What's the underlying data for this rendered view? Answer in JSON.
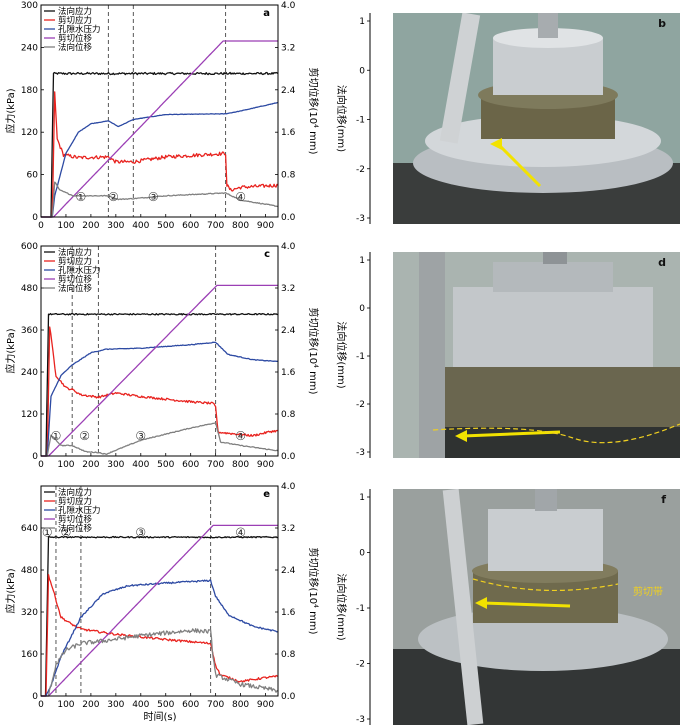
{
  "figure": {
    "x_label": "时间(s)",
    "y_label_left": "应力(kPa)",
    "y_label_right_top": "剪切位移(10",
    "y_label_right_sup": "4",
    "y_label_right_bottom": " mm)",
    "photo_axis_label": "法向位移(mm)"
  },
  "colors": {
    "normal_stress": "#111111",
    "shear_stress": "#e8231f",
    "pore_pressure": "#2d4aa3",
    "shear_displacement": "#9b3fb5",
    "normal_displacement": "#808080",
    "arrow": "#f2e200",
    "shear_band": "#f0d020"
  },
  "photos": [
    {
      "label": "b",
      "caption": ""
    },
    {
      "label": "d",
      "caption": ""
    },
    {
      "label": "f",
      "caption": "剪切带"
    }
  ],
  "photo_axis_ticks": [
    "1",
    "0",
    "-1",
    "-2",
    "-3"
  ],
  "chart_data": [
    {
      "type": "line",
      "label": "a",
      "xlim": [
        0,
        950
      ],
      "x_ticks": [
        0,
        100,
        200,
        300,
        400,
        500,
        600,
        700,
        800,
        900
      ],
      "ylim_left": [
        0,
        300
      ],
      "y_ticks_left": [
        0,
        60,
        120,
        180,
        240,
        300
      ],
      "ylim_right": [
        0,
        4.0
      ],
      "y_ticks_right": [
        "0.0",
        "0.8",
        "1.6",
        "2.4",
        "3.2",
        "4.0"
      ],
      "stage_lines_x": [
        270,
        370,
        740
      ],
      "stage_labels": [
        {
          "text": "①",
          "x": 160,
          "y": 20
        },
        {
          "text": "②",
          "x": 290,
          "y": 20
        },
        {
          "text": "③",
          "x": 450,
          "y": 20
        },
        {
          "text": "④",
          "x": 800,
          "y": 20
        }
      ],
      "legend": [
        "法向应力",
        "剪切应力",
        "孔隙水压力",
        "剪切位移",
        "法向位移"
      ],
      "series": [
        {
          "name": "法向应力",
          "axis": "left",
          "color": "#111111",
          "noise": 1.5,
          "points": [
            [
              0,
              0
            ],
            [
              40,
              0
            ],
            [
              50,
              203
            ],
            [
              950,
              203
            ]
          ]
        },
        {
          "name": "剪切应力",
          "axis": "left",
          "color": "#e8231f",
          "noise": 2.5,
          "points": [
            [
              0,
              0
            ],
            [
              45,
              0
            ],
            [
              55,
              175
            ],
            [
              65,
              110
            ],
            [
              90,
              88
            ],
            [
              150,
              84
            ],
            [
              270,
              85
            ],
            [
              300,
              78
            ],
            [
              370,
              78
            ],
            [
              500,
              85
            ],
            [
              740,
              90
            ],
            [
              745,
              45
            ],
            [
              760,
              38
            ],
            [
              800,
              42
            ],
            [
              950,
              45
            ]
          ]
        },
        {
          "name": "孔隙水压力",
          "axis": "left",
          "color": "#2d4aa3",
          "noise": 0.3,
          "points": [
            [
              0,
              0
            ],
            [
              45,
              0
            ],
            [
              55,
              30
            ],
            [
              100,
              90
            ],
            [
              150,
              120
            ],
            [
              200,
              132
            ],
            [
              270,
              136
            ],
            [
              310,
              128
            ],
            [
              370,
              138
            ],
            [
              500,
              145
            ],
            [
              740,
              146
            ],
            [
              800,
              150
            ],
            [
              950,
              162
            ]
          ]
        },
        {
          "name": "剪切位移",
          "axis": "right",
          "color": "#9b3fb5",
          "noise": 0,
          "points": [
            [
              0,
              0
            ],
            [
              50,
              0
            ],
            [
              730,
              3.32
            ],
            [
              950,
              3.32
            ]
          ]
        },
        {
          "name": "法向位移",
          "axis": "left",
          "color": "#808080",
          "noise": 0.6,
          "points": [
            [
              0,
              0
            ],
            [
              45,
              0
            ],
            [
              55,
              50
            ],
            [
              75,
              38
            ],
            [
              130,
              30
            ],
            [
              270,
              30
            ],
            [
              310,
              25
            ],
            [
              370,
              26
            ],
            [
              500,
              30
            ],
            [
              740,
              34
            ],
            [
              800,
              24
            ],
            [
              950,
              15
            ]
          ]
        }
      ]
    },
    {
      "type": "line",
      "label": "c",
      "xlim": [
        0,
        950
      ],
      "x_ticks": [
        0,
        100,
        200,
        300,
        400,
        500,
        600,
        700,
        800,
        900
      ],
      "ylim_left": [
        0,
        600
      ],
      "y_ticks_left": [
        0,
        120,
        240,
        360,
        480,
        600
      ],
      "ylim_right": [
        0,
        4.0
      ],
      "y_ticks_right": [
        "0.0",
        "0.8",
        "1.6",
        "2.4",
        "3.2",
        "4.0"
      ],
      "stage_lines_x": [
        125,
        230,
        700
      ],
      "stage_labels": [
        {
          "text": "①",
          "x": 60,
          "y": 40
        },
        {
          "text": "②",
          "x": 175,
          "y": 40
        },
        {
          "text": "③",
          "x": 400,
          "y": 40
        },
        {
          "text": "④",
          "x": 800,
          "y": 40
        }
      ],
      "legend": [
        "法向应力",
        "剪切应力",
        "孔隙水压力",
        "剪切位移",
        "法向位移"
      ],
      "series": [
        {
          "name": "法向应力",
          "axis": "left",
          "color": "#111111",
          "noise": 2,
          "points": [
            [
              0,
              0
            ],
            [
              20,
              0
            ],
            [
              30,
              405
            ],
            [
              950,
              405
            ]
          ]
        },
        {
          "name": "剪切应力",
          "axis": "left",
          "color": "#e8231f",
          "noise": 3,
          "points": [
            [
              0,
              0
            ],
            [
              25,
              0
            ],
            [
              35,
              370
            ],
            [
              60,
              230
            ],
            [
              100,
              195
            ],
            [
              125,
              190
            ],
            [
              160,
              175
            ],
            [
              230,
              168
            ],
            [
              300,
              180
            ],
            [
              400,
              170
            ],
            [
              600,
              155
            ],
            [
              690,
              150
            ],
            [
              700,
              140
            ],
            [
              710,
              68
            ],
            [
              850,
              58
            ],
            [
              920,
              70
            ],
            [
              950,
              72
            ]
          ]
        },
        {
          "name": "孔隙水压力",
          "axis": "left",
          "color": "#2d4aa3",
          "noise": 1,
          "points": [
            [
              0,
              0
            ],
            [
              25,
              0
            ],
            [
              40,
              170
            ],
            [
              80,
              230
            ],
            [
              125,
              260
            ],
            [
              200,
              295
            ],
            [
              260,
              305
            ],
            [
              400,
              308
            ],
            [
              600,
              318
            ],
            [
              700,
              325
            ],
            [
              750,
              290
            ],
            [
              850,
              275
            ],
            [
              950,
              270
            ]
          ]
        },
        {
          "name": "剪切位移",
          "axis": "right",
          "color": "#9b3fb5",
          "noise": 0,
          "points": [
            [
              0,
              0
            ],
            [
              30,
              0
            ],
            [
              705,
              3.25
            ],
            [
              950,
              3.25
            ]
          ]
        },
        {
          "name": "法向位移",
          "axis": "left",
          "color": "#808080",
          "noise": 1.2,
          "points": [
            [
              0,
              0
            ],
            [
              25,
              0
            ],
            [
              40,
              60
            ],
            [
              80,
              30
            ],
            [
              125,
              30
            ],
            [
              180,
              12
            ],
            [
              230,
              10
            ],
            [
              260,
              5
            ],
            [
              400,
              45
            ],
            [
              600,
              80
            ],
            [
              700,
              95
            ],
            [
              720,
              40
            ],
            [
              800,
              30
            ],
            [
              950,
              15
            ]
          ]
        }
      ]
    },
    {
      "type": "line",
      "label": "e",
      "xlim": [
        0,
        950
      ],
      "x_ticks": [
        0,
        100,
        200,
        300,
        400,
        500,
        600,
        700,
        800,
        900
      ],
      "ylim_left": [
        0,
        800
      ],
      "y_ticks_left": [
        0,
        160,
        320,
        480,
        640
      ],
      "ylim_right": [
        0,
        4.0
      ],
      "y_ticks_right": [
        "0.0",
        "0.8",
        "1.6",
        "2.4",
        "3.2",
        "4.0"
      ],
      "stage_lines_x": [
        60,
        160,
        680
      ],
      "stage_labels": [
        {
          "text": "①",
          "x": 25,
          "y": 600
        },
        {
          "text": "②",
          "x": 100,
          "y": 600
        },
        {
          "text": "③",
          "x": 400,
          "y": 600
        },
        {
          "text": "④",
          "x": 800,
          "y": 600
        }
      ],
      "legend": [
        "法向应力",
        "剪切应力",
        "孔隙水压力",
        "剪切位移",
        "法向位移"
      ],
      "series": [
        {
          "name": "法向应力",
          "axis": "left",
          "color": "#111111",
          "noise": 2.5,
          "points": [
            [
              0,
              0
            ],
            [
              18,
              0
            ],
            [
              30,
              605
            ],
            [
              950,
              605
            ]
          ]
        },
        {
          "name": "剪切应力",
          "axis": "left",
          "color": "#e8231f",
          "noise": 4,
          "points": [
            [
              0,
              0
            ],
            [
              20,
              0
            ],
            [
              30,
              460
            ],
            [
              50,
              400
            ],
            [
              80,
              300
            ],
            [
              120,
              275
            ],
            [
              160,
              255
            ],
            [
              300,
              235
            ],
            [
              500,
              215
            ],
            [
              680,
              200
            ],
            [
              690,
              160
            ],
            [
              700,
              115
            ],
            [
              720,
              80
            ],
            [
              800,
              55
            ],
            [
              900,
              70
            ],
            [
              950,
              75
            ]
          ]
        },
        {
          "name": "孔隙水压力",
          "axis": "left",
          "color": "#2d4aa3",
          "noise": 3,
          "points": [
            [
              0,
              0
            ],
            [
              20,
              0
            ],
            [
              40,
              40
            ],
            [
              80,
              150
            ],
            [
              160,
              300
            ],
            [
              250,
              390
            ],
            [
              350,
              420
            ],
            [
              500,
              430
            ],
            [
              680,
              440
            ],
            [
              700,
              380
            ],
            [
              750,
              310
            ],
            [
              850,
              265
            ],
            [
              950,
              245
            ]
          ]
        },
        {
          "name": "剪切位移",
          "axis": "right",
          "color": "#9b3fb5",
          "noise": 0,
          "points": [
            [
              0,
              0
            ],
            [
              30,
              0
            ],
            [
              690,
              3.25
            ],
            [
              950,
              3.25
            ]
          ]
        },
        {
          "name": "法向位移",
          "axis": "left",
          "color": "#808080",
          "noise": 8,
          "points": [
            [
              0,
              0
            ],
            [
              30,
              0
            ],
            [
              60,
              120
            ],
            [
              100,
              175
            ],
            [
              160,
              200
            ],
            [
              250,
              210
            ],
            [
              400,
              230
            ],
            [
              600,
              250
            ],
            [
              680,
              245
            ],
            [
              690,
              150
            ],
            [
              700,
              80
            ],
            [
              800,
              45
            ],
            [
              950,
              20
            ]
          ]
        }
      ]
    }
  ]
}
